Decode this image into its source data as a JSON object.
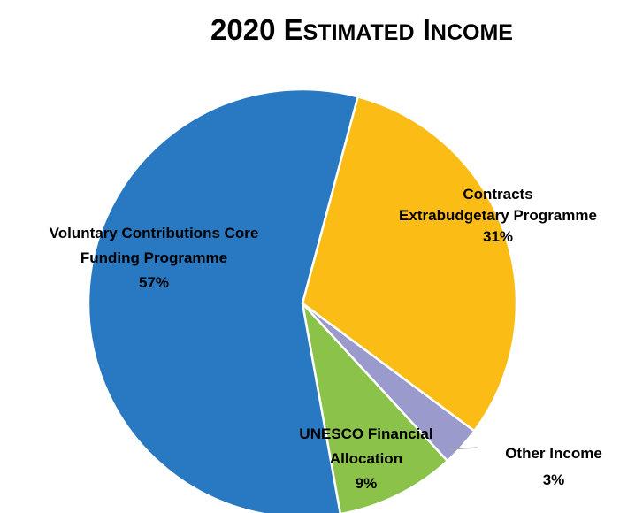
{
  "chart_data": {
    "type": "pie",
    "title": "2020 Estimated Income",
    "title_parts": [
      {
        "big": "2020 E",
        "small": "STIMATED"
      },
      {
        "big": " I",
        "small": "NCOME"
      }
    ],
    "slices": [
      {
        "name": "Contracts Extrabudgetary Programme",
        "label_lines": [
          "Contracts",
          "Extrabudgetary Programme",
          "31%"
        ],
        "value": 31,
        "color": "#FBBC15"
      },
      {
        "name": "Other Income",
        "label_lines": [
          "Other Income",
          "3%"
        ],
        "value": 3,
        "color": "#9A9ACD"
      },
      {
        "name": "UNESCO Financial Allocation",
        "label_lines": [
          "UNESCO Financial",
          "Allocation",
          "9%"
        ],
        "value": 9,
        "color": "#8BC34A"
      },
      {
        "name": "Voluntary Contributions Core Funding Programme",
        "label_lines": [
          "Voluntary Contributions Core",
          "Funding Programme",
          "57%"
        ],
        "value": 57,
        "color": "#2878C2"
      }
    ]
  }
}
